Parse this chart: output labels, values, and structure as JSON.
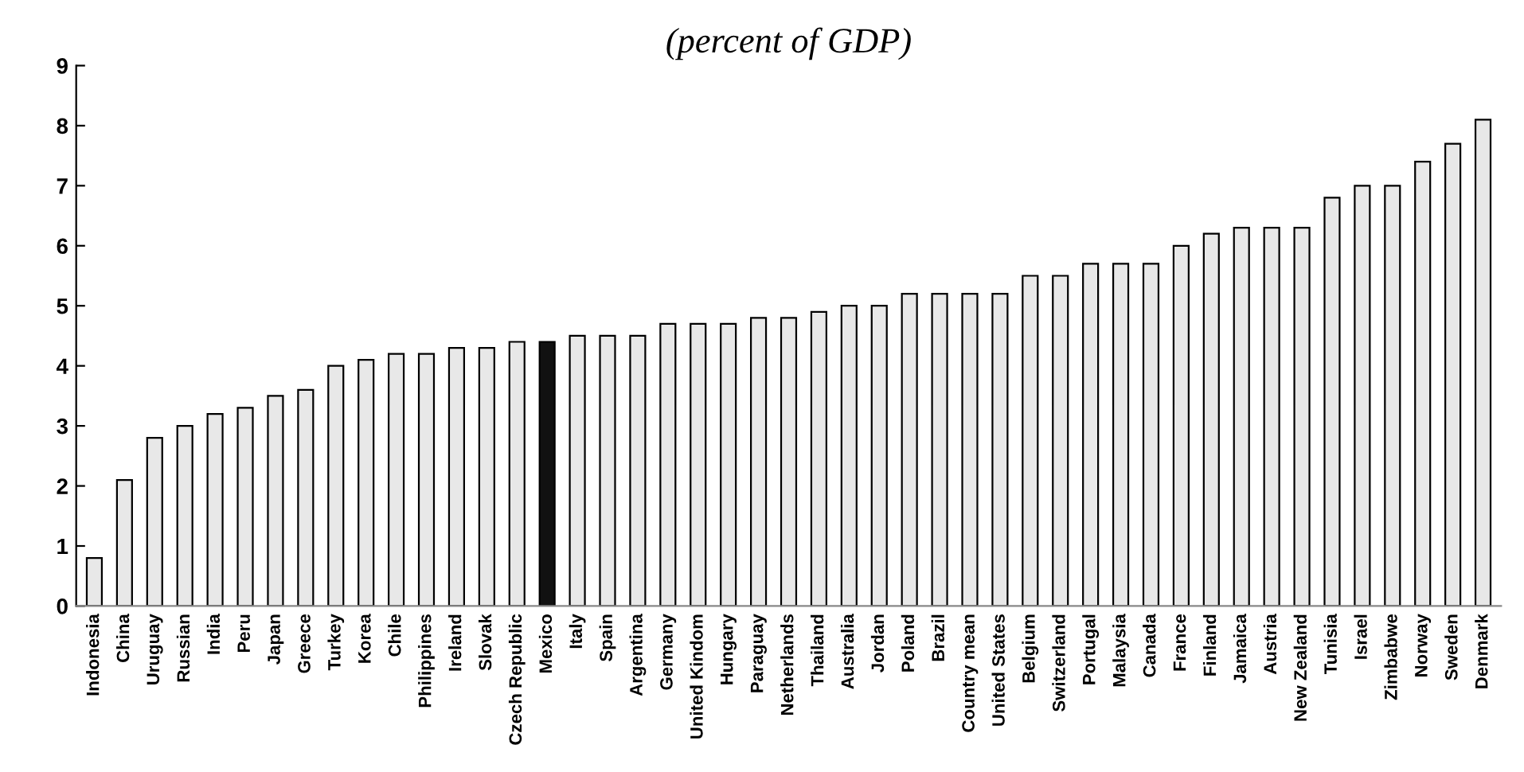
{
  "chart_data": {
    "type": "bar",
    "title": "(percent of GDP)",
    "categories": [
      "Indonesia",
      "China",
      "Uruguay",
      "Russian",
      "India",
      "Peru",
      "Japan",
      "Greece",
      "Turkey",
      "Korea",
      "Chile",
      "Philippines",
      "Ireland",
      "Slovak",
      "Czech Republic",
      "Mexico",
      "Italy",
      "Spain",
      "Argentina",
      "Germany",
      "United Kindom",
      "Hungary",
      "Paraguay",
      "Netherlands",
      "Thailand",
      "Australia",
      "Jordan",
      "Poland",
      "Brazil",
      "Country mean",
      "United States",
      "Belgium",
      "Switzerland",
      "Portugal",
      "Malaysia",
      "Canada",
      "France",
      "Finland",
      "Jamaica",
      "Austria",
      "New Zealand",
      "Tunisia",
      "Israel",
      "Zimbabwe",
      "Norway",
      "Sweden",
      "Denmark"
    ],
    "values": [
      0.8,
      2.1,
      2.8,
      3.0,
      3.2,
      3.3,
      3.5,
      3.6,
      4.0,
      4.1,
      4.2,
      4.2,
      4.3,
      4.3,
      4.4,
      4.4,
      4.5,
      4.5,
      4.5,
      4.7,
      4.7,
      4.7,
      4.8,
      4.8,
      4.9,
      5.0,
      5.0,
      5.2,
      5.2,
      5.2,
      5.2,
      5.5,
      5.5,
      5.7,
      5.7,
      5.7,
      6.0,
      6.2,
      6.3,
      6.3,
      6.3,
      6.8,
      7.0,
      7.0,
      7.4,
      7.7,
      8.1
    ],
    "colors": [
      "#e8e8e8",
      "#e8e8e8",
      "#e8e8e8",
      "#e8e8e8",
      "#e8e8e8",
      "#e8e8e8",
      "#e8e8e8",
      "#e8e8e8",
      "#e8e8e8",
      "#e8e8e8",
      "#e8e8e8",
      "#e8e8e8",
      "#e8e8e8",
      "#e8e8e8",
      "#e8e8e8",
      "#111111",
      "#e8e8e8",
      "#e8e8e8",
      "#e8e8e8",
      "#e8e8e8",
      "#e8e8e8",
      "#e8e8e8",
      "#e8e8e8",
      "#e8e8e8",
      "#e8e8e8",
      "#e8e8e8",
      "#e8e8e8",
      "#e8e8e8",
      "#e8e8e8",
      "#e8e8e8",
      "#e8e8e8",
      "#e8e8e8",
      "#e8e8e8",
      "#e8e8e8",
      "#e8e8e8",
      "#e8e8e8",
      "#e8e8e8",
      "#e8e8e8",
      "#e8e8e8",
      "#e8e8e8",
      "#e8e8e8",
      "#e8e8e8",
      "#e8e8e8",
      "#e8e8e8",
      "#e8e8e8",
      "#e8e8e8",
      "#e8e8e8"
    ],
    "ylim": [
      0,
      9
    ],
    "yticks": [
      0,
      1,
      2,
      3,
      4,
      5,
      6,
      7,
      8,
      9
    ],
    "grid": false
  }
}
